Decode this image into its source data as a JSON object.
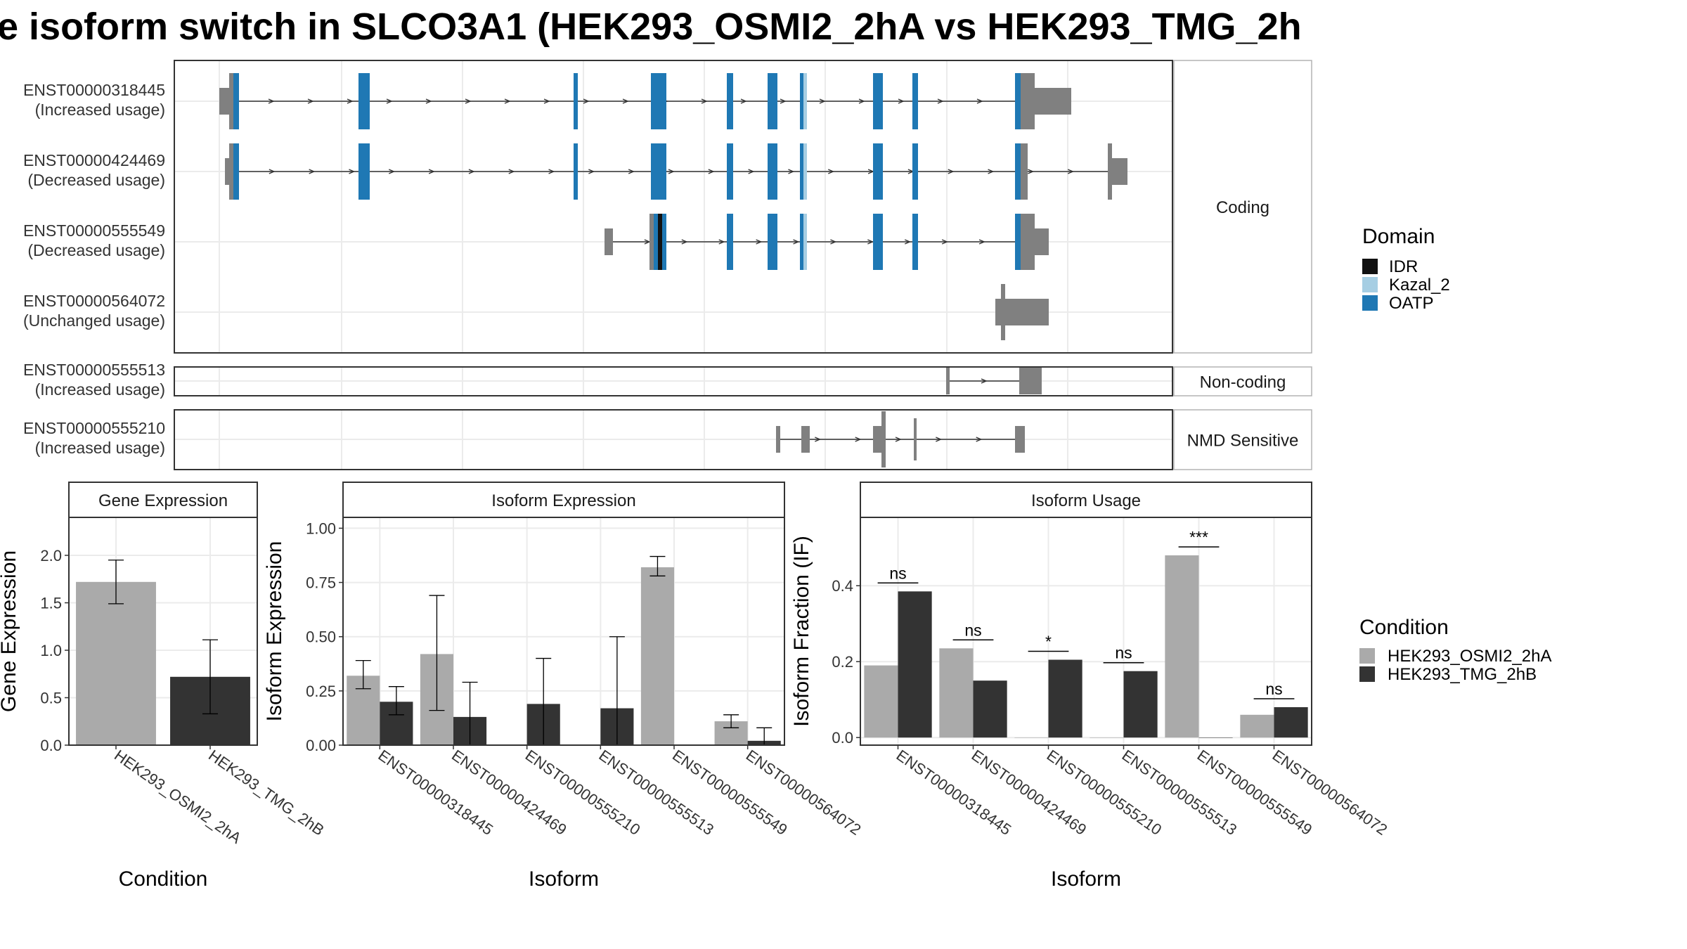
{
  "title": "e isoform switch in SLCO3A1 (HEK293_OSMI2_2hA vs HEK293_TMG_2h",
  "colors": {
    "OSMI2": "#aaaaaa",
    "TMG": "#333333",
    "IDR": "#111111",
    "Kazal_2": "#a6cee3",
    "OATP": "#1f78b4",
    "utr": "#808080",
    "grid": "#ebebeb",
    "panel_border": "#333333",
    "strip_border": "#b3b3b3"
  },
  "structure": {
    "transcripts": [
      {
        "id": "ENST00000318445",
        "usage": "(Increased usage)",
        "group": "Coding"
      },
      {
        "id": "ENST00000424469",
        "usage": "(Decreased usage)",
        "group": "Coding"
      },
      {
        "id": "ENST00000555549",
        "usage": "(Decreased usage)",
        "group": "Coding"
      },
      {
        "id": "ENST00000564072",
        "usage": "(Unchanged usage)",
        "group": "Coding"
      },
      {
        "id": "ENST00000555513",
        "usage": "(Increased usage)",
        "group": "Non-coding"
      },
      {
        "id": "ENST00000555210",
        "usage": "(Increased usage)",
        "group": "NMD Sensitive"
      }
    ],
    "groups": [
      "Coding",
      "Non-coding",
      "NMD Sensitive"
    ]
  },
  "legend_domain": {
    "title": "Domain",
    "items": [
      {
        "label": "IDR",
        "color": "#111111"
      },
      {
        "label": "Kazal_2",
        "color": "#a6cee3"
      },
      {
        "label": "OATP",
        "color": "#1f78b4"
      }
    ]
  },
  "legend_condition": {
    "title": "Condition",
    "items": [
      {
        "label": "HEK293_OSMI2_2hA",
        "color": "#aaaaaa"
      },
      {
        "label": "HEK293_TMG_2hB",
        "color": "#333333"
      }
    ]
  },
  "chart_data": [
    {
      "type": "bar",
      "panel": "Gene Expression",
      "xlabel": "Condition",
      "ylabel": "Gene Expression",
      "categories": [
        "HEK293_OSMI2_2hA",
        "HEK293_TMG_2hB"
      ],
      "values": [
        1.72,
        0.72
      ],
      "errors": [
        [
          1.49,
          1.95
        ],
        [
          0.33,
          1.11
        ]
      ],
      "ylim": [
        0,
        2.4
      ],
      "yticks": [
        0.0,
        0.5,
        1.0,
        1.5,
        2.0
      ],
      "ytick_labels": [
        "0.0",
        "0.5",
        "1.0",
        "1.5",
        "2.0"
      ]
    },
    {
      "type": "bar",
      "panel": "Isoform Expression",
      "xlabel": "Isoform",
      "ylabel": "Isoform Expression",
      "categories": [
        "ENST00000318445",
        "ENST00000424469",
        "ENST00000555210",
        "ENST00000555513",
        "ENST00000555549",
        "ENST00000564072"
      ],
      "series": [
        {
          "name": "HEK293_OSMI2_2hA",
          "values": [
            0.32,
            0.42,
            0.0,
            0.0,
            0.82,
            0.11
          ],
          "errors": [
            [
              0.26,
              0.39
            ],
            [
              0.16,
              0.69
            ],
            [
              0.0,
              0.0
            ],
            [
              0.0,
              0.0
            ],
            [
              0.78,
              0.87
            ],
            [
              0.08,
              0.14
            ]
          ]
        },
        {
          "name": "HEK293_TMG_2hB",
          "values": [
            0.2,
            0.13,
            0.19,
            0.17,
            0.0,
            0.02
          ],
          "errors": [
            [
              0.14,
              0.27
            ],
            [
              0.0,
              0.29
            ],
            [
              0.0,
              0.4
            ],
            [
              0.0,
              0.5
            ],
            [
              0.0,
              0.0
            ],
            [
              0.0,
              0.08
            ]
          ]
        }
      ],
      "ylim": [
        0,
        1.05
      ],
      "yticks": [
        0.0,
        0.25,
        0.5,
        0.75,
        1.0
      ],
      "ytick_labels": [
        "0.00",
        "0.25",
        "0.50",
        "0.75",
        "1.00"
      ]
    },
    {
      "type": "bar",
      "panel": "Isoform Usage",
      "xlabel": "Isoform",
      "ylabel": "Isoform Fraction (IF)",
      "categories": [
        "ENST00000318445",
        "ENST00000424469",
        "ENST00000555210",
        "ENST00000555513",
        "ENST00000555549",
        "ENST00000564072"
      ],
      "series": [
        {
          "name": "HEK293_OSMI2_2hA",
          "values": [
            0.19,
            0.235,
            0.0,
            0.0,
            0.48,
            0.06
          ]
        },
        {
          "name": "HEK293_TMG_2hB",
          "values": [
            0.385,
            0.15,
            0.205,
            0.175,
            0.0,
            0.08
          ]
        }
      ],
      "significance": [
        "ns",
        "ns",
        "*",
        "ns",
        "***",
        "ns"
      ],
      "ylim": [
        -0.02,
        0.58
      ],
      "yticks": [
        0.0,
        0.2,
        0.4
      ],
      "ytick_labels": [
        "0.0",
        "0.2",
        "0.4"
      ]
    }
  ]
}
